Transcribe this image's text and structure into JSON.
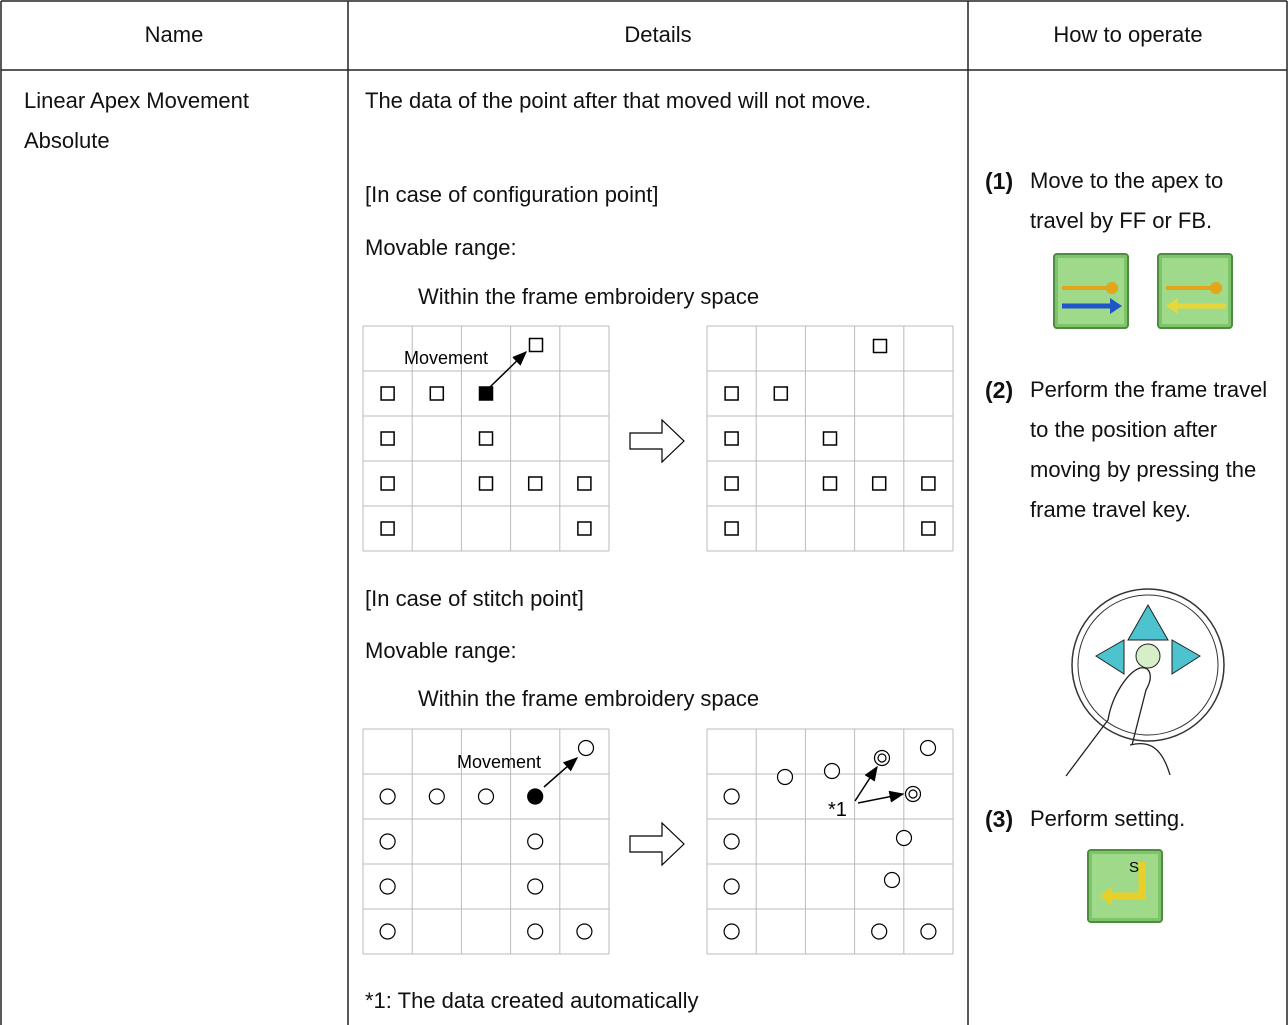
{
  "header": {
    "name": "Name",
    "details": "Details",
    "operate": "How to operate"
  },
  "row": {
    "name": "Linear Apex Movement Absolute",
    "details": {
      "intro": "The data of the point after that moved will not move.",
      "config_case": "[In case of configuration point]",
      "config_range": "Movable range:",
      "config_space": "Within the frame embroidery space",
      "config_movement": "Movement",
      "stitch_case": "[In case of stitch point]",
      "stitch_range": "Movable range:",
      "stitch_space": "Within the frame embroidery space",
      "stitch_movement": "Movement",
      "auto_mark": "*1",
      "note": "*1: The data created automatically"
    },
    "steps": [
      {
        "num": "(1)",
        "text": "Move to the apex to travel by FF or FB."
      },
      {
        "num": "(2)",
        "text": "Perform the frame travel to the position after moving by pressing the frame travel key."
      },
      {
        "num": "(3)",
        "text": "Perform setting.",
        "key": "S"
      }
    ]
  }
}
